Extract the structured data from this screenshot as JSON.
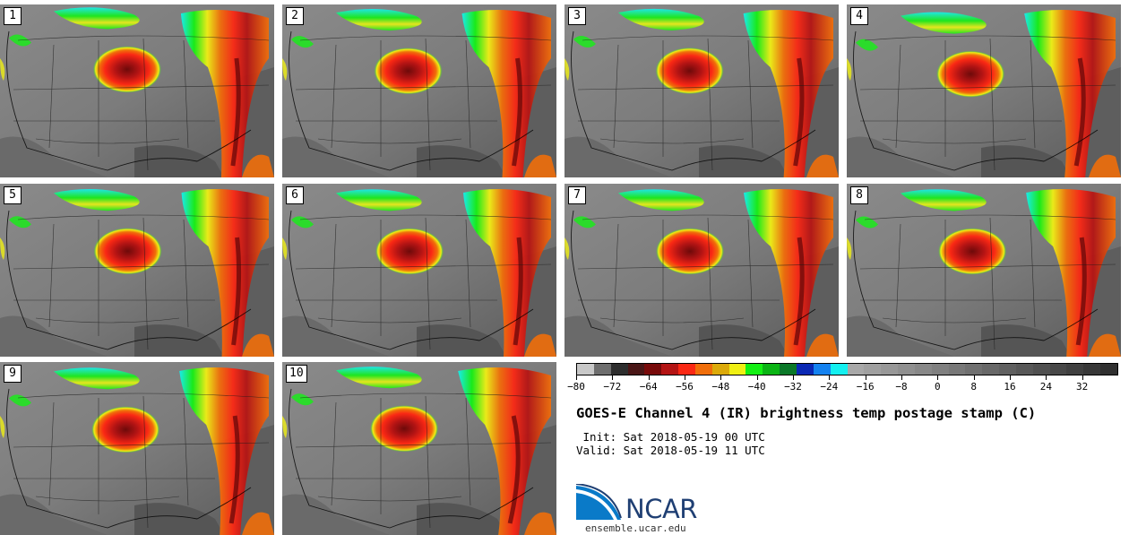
{
  "panels": [
    "1",
    "2",
    "3",
    "4",
    "5",
    "6",
    "7",
    "8",
    "9",
    "10"
  ],
  "colorbar": {
    "colors": [
      "#c8c8c8",
      "#6e6e6e",
      "#2e2e2e",
      "#4a1616",
      "#780a0a",
      "#b41414",
      "#fa2814",
      "#f06e0a",
      "#dcaa0a",
      "#f0f014",
      "#14f014",
      "#0ab414",
      "#0a7828",
      "#0a28b4",
      "#1482f0",
      "#14f0f0",
      "#a8a8a8",
      "#a0a0a0",
      "#989898",
      "#909090",
      "#888888",
      "#808080",
      "#787878",
      "#707070",
      "#686868",
      "#606060",
      "#585858",
      "#505050",
      "#484848",
      "#404040",
      "#383838",
      "#303030"
    ],
    "min": -80,
    "max": 40,
    "tick_labels": [
      "−80",
      "−72",
      "−64",
      "−56",
      "−48",
      "−40",
      "−32",
      "−24",
      "−16",
      "−8",
      "0",
      "8",
      "16",
      "24",
      "32"
    ],
    "tick_values": [
      -80,
      -72,
      -64,
      -56,
      -48,
      -40,
      -32,
      -24,
      -16,
      -8,
      0,
      8,
      16,
      24,
      32
    ]
  },
  "title": "GOES-E Channel 4 (IR) brightness temp postage stamp (C)",
  "init_line": " Init: Sat 2018-05-19 00 UTC",
  "valid_line": "Valid: Sat 2018-05-19 11 UTC",
  "logo_text": "NCAR",
  "url": "ensemble.ucar.edu"
}
